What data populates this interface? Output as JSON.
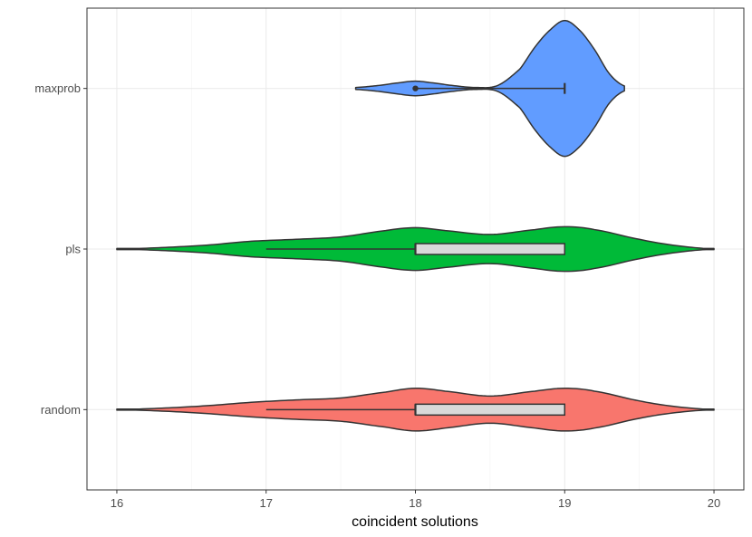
{
  "chart_data": {
    "type": "violin",
    "xlabel": "coincident solutions",
    "ylabel": "",
    "xlim": [
      15.8,
      20.2
    ],
    "x_ticks": [
      16,
      17,
      18,
      19,
      20
    ],
    "grid": true,
    "categories": [
      "random",
      "pls",
      "maxprob"
    ],
    "series": [
      {
        "category": "maxprob",
        "color": "#619CFF",
        "range": [
          17.6,
          19.4
        ],
        "density": [
          [
            17.6,
            0.02
          ],
          [
            17.75,
            0.06
          ],
          [
            17.9,
            0.12
          ],
          [
            18.0,
            0.15
          ],
          [
            18.1,
            0.12
          ],
          [
            18.25,
            0.06
          ],
          [
            18.4,
            0.02
          ],
          [
            18.55,
            0.06
          ],
          [
            18.7,
            0.4
          ],
          [
            18.8,
            0.85
          ],
          [
            18.9,
            1.2
          ],
          [
            19.0,
            1.4
          ],
          [
            19.1,
            1.2
          ],
          [
            19.2,
            0.8
          ],
          [
            19.3,
            0.3
          ],
          [
            19.4,
            0.05
          ]
        ],
        "box": {
          "q1": 19,
          "median": 19,
          "q3": 19,
          "whisker_low": 18,
          "whisker_high": 19,
          "outliers": [
            18
          ]
        }
      },
      {
        "category": "pls",
        "color": "#00BA38",
        "range": [
          16.0,
          20.0
        ],
        "density": [
          [
            16.0,
            0.0
          ],
          [
            16.3,
            0.03
          ],
          [
            16.6,
            0.08
          ],
          [
            16.9,
            0.16
          ],
          [
            17.2,
            0.2
          ],
          [
            17.5,
            0.25
          ],
          [
            17.8,
            0.38
          ],
          [
            18.0,
            0.44
          ],
          [
            18.2,
            0.38
          ],
          [
            18.5,
            0.3
          ],
          [
            18.8,
            0.4
          ],
          [
            19.0,
            0.46
          ],
          [
            19.2,
            0.4
          ],
          [
            19.5,
            0.2
          ],
          [
            19.75,
            0.07
          ],
          [
            20.0,
            0.0
          ]
        ],
        "box": {
          "q1": 18,
          "median": 18,
          "q3": 19,
          "whisker_low": 17,
          "whisker_high": 19,
          "outliers": []
        }
      },
      {
        "category": "random",
        "color": "#F8766D",
        "range": [
          16.0,
          20.0
        ],
        "density": [
          [
            16.0,
            0.0
          ],
          [
            16.3,
            0.03
          ],
          [
            16.6,
            0.08
          ],
          [
            16.9,
            0.15
          ],
          [
            17.2,
            0.2
          ],
          [
            17.5,
            0.24
          ],
          [
            17.8,
            0.36
          ],
          [
            18.0,
            0.44
          ],
          [
            18.2,
            0.38
          ],
          [
            18.5,
            0.28
          ],
          [
            18.8,
            0.38
          ],
          [
            19.0,
            0.44
          ],
          [
            19.2,
            0.38
          ],
          [
            19.5,
            0.18
          ],
          [
            19.75,
            0.06
          ],
          [
            20.0,
            0.0
          ]
        ],
        "box": {
          "q1": 18,
          "median": 18,
          "q3": 19,
          "whisker_low": 17,
          "whisker_high": 19,
          "outliers": []
        }
      }
    ]
  }
}
